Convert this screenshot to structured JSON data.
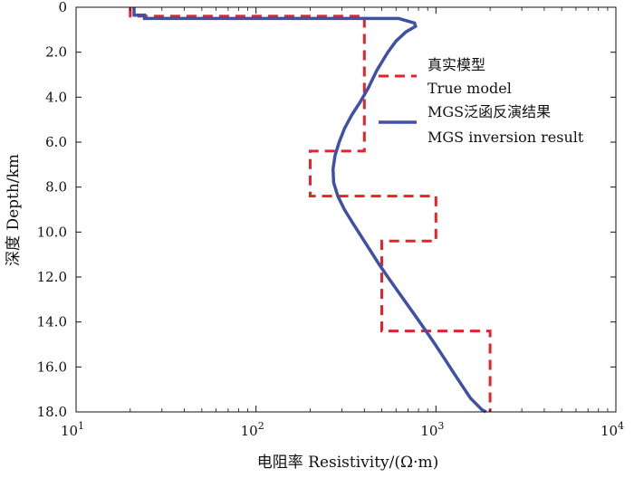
{
  "chart_data": {
    "type": "line",
    "xlabel": "电阻率 Resistivity/(Ω·m)",
    "ylabel": "深度 Depth/km",
    "x_scale": "log",
    "xlim": [
      10,
      10000
    ],
    "ylim": [
      18.0,
      0
    ],
    "x_ticks": [
      {
        "value": 10,
        "base": "10",
        "exp": "1"
      },
      {
        "value": 100,
        "base": "10",
        "exp": "2"
      },
      {
        "value": 1000,
        "base": "10",
        "exp": "3"
      },
      {
        "value": 10000,
        "base": "10",
        "exp": "4"
      }
    ],
    "y_ticks": [
      {
        "value": 0,
        "label": "0"
      },
      {
        "value": 2,
        "label": "2.0"
      },
      {
        "value": 4,
        "label": "4.0"
      },
      {
        "value": 6,
        "label": "6.0"
      },
      {
        "value": 8,
        "label": "8.0"
      },
      {
        "value": 10,
        "label": "10.0"
      },
      {
        "value": 12,
        "label": "12.0"
      },
      {
        "value": 14,
        "label": "14.0"
      },
      {
        "value": 16,
        "label": "16.0"
      },
      {
        "value": 18,
        "label": "18.0"
      }
    ],
    "legend_position": "top-right",
    "series": [
      {
        "name": "真实模型",
        "name_en": "True model",
        "color": "#e8222a",
        "style": "dashed",
        "points": [
          [
            20,
            0
          ],
          [
            20,
            0.4
          ],
          [
            400,
            0.4
          ],
          [
            400,
            6.4
          ],
          [
            200,
            6.4
          ],
          [
            200,
            8.4
          ],
          [
            1000,
            8.4
          ],
          [
            1000,
            10.4
          ],
          [
            500,
            10.4
          ],
          [
            500,
            14.4
          ],
          [
            2000,
            14.4
          ],
          [
            2000,
            18.0
          ]
        ]
      },
      {
        "name": "MGS泛函反演结果",
        "name_en": "MGS inversion result",
        "color": "#3f51a6",
        "style": "solid",
        "points": [
          [
            21,
            0
          ],
          [
            21,
            0.35
          ],
          [
            24,
            0.35
          ],
          [
            24,
            0.5
          ],
          [
            620,
            0.5
          ],
          [
            760,
            0.7
          ],
          [
            770,
            0.85
          ],
          [
            680,
            1.1
          ],
          [
            600,
            1.5
          ],
          [
            540,
            2.0
          ],
          [
            470,
            2.8
          ],
          [
            420,
            3.6
          ],
          [
            380,
            4.2
          ],
          [
            340,
            4.8
          ],
          [
            310,
            5.4
          ],
          [
            290,
            6.0
          ],
          [
            275,
            6.6
          ],
          [
            268,
            7.2
          ],
          [
            270,
            7.8
          ],
          [
            285,
            8.4
          ],
          [
            310,
            9.0
          ],
          [
            345,
            9.6
          ],
          [
            385,
            10.2
          ],
          [
            430,
            10.8
          ],
          [
            480,
            11.4
          ],
          [
            540,
            12.0
          ],
          [
            610,
            12.6
          ],
          [
            690,
            13.2
          ],
          [
            780,
            13.8
          ],
          [
            880,
            14.4
          ],
          [
            990,
            15.0
          ],
          [
            1110,
            15.6
          ],
          [
            1240,
            16.2
          ],
          [
            1390,
            16.8
          ],
          [
            1560,
            17.4
          ],
          [
            1800,
            17.9
          ],
          [
            1900,
            18.0
          ]
        ]
      }
    ]
  }
}
